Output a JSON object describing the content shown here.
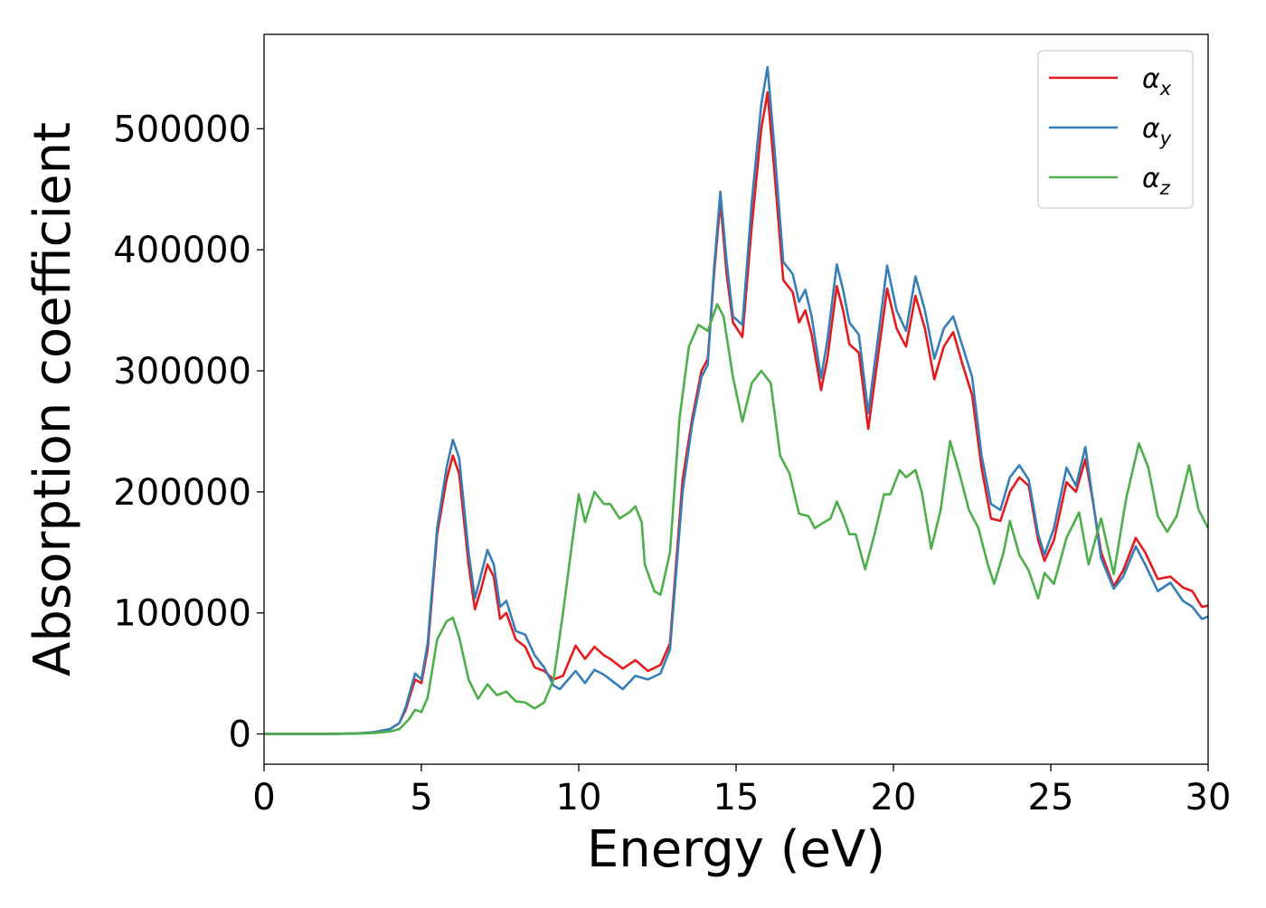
{
  "chart_data": {
    "type": "line",
    "title": "",
    "xlabel": "Energy (eV)",
    "ylabel": "Absorption coefficient",
    "xlim": [
      0,
      30
    ],
    "ylim": [
      -25000,
      578000
    ],
    "x_ticks": [
      0,
      5,
      10,
      15,
      20,
      25,
      30
    ],
    "y_ticks": [
      0,
      100000,
      200000,
      300000,
      400000,
      500000
    ],
    "grid": false,
    "legend_position": "top-right",
    "series": [
      {
        "name": "α",
        "subscript": "x",
        "color": "#e41a1c",
        "points": [
          [
            0,
            0
          ],
          [
            2,
            0
          ],
          [
            3,
            500
          ],
          [
            3.5,
            1500
          ],
          [
            4,
            4000
          ],
          [
            4.3,
            9000
          ],
          [
            4.5,
            20000
          ],
          [
            4.8,
            45000
          ],
          [
            5.0,
            42000
          ],
          [
            5.2,
            70000
          ],
          [
            5.5,
            165000
          ],
          [
            5.8,
            210000
          ],
          [
            6.0,
            230000
          ],
          [
            6.2,
            215000
          ],
          [
            6.5,
            140000
          ],
          [
            6.7,
            103000
          ],
          [
            6.9,
            120000
          ],
          [
            7.1,
            140000
          ],
          [
            7.3,
            130000
          ],
          [
            7.5,
            95000
          ],
          [
            7.7,
            100000
          ],
          [
            8.0,
            78000
          ],
          [
            8.3,
            72000
          ],
          [
            8.6,
            55000
          ],
          [
            8.9,
            52000
          ],
          [
            9.2,
            45000
          ],
          [
            9.5,
            48000
          ],
          [
            9.9,
            73000
          ],
          [
            10.2,
            62000
          ],
          [
            10.5,
            72000
          ],
          [
            10.8,
            65000
          ],
          [
            11.0,
            62000
          ],
          [
            11.4,
            54000
          ],
          [
            11.8,
            61000
          ],
          [
            12.2,
            52000
          ],
          [
            12.6,
            57000
          ],
          [
            12.9,
            75000
          ],
          [
            13.3,
            210000
          ],
          [
            13.6,
            260000
          ],
          [
            13.9,
            300000
          ],
          [
            14.1,
            310000
          ],
          [
            14.3,
            380000
          ],
          [
            14.5,
            440000
          ],
          [
            14.7,
            380000
          ],
          [
            14.9,
            340000
          ],
          [
            15.2,
            328000
          ],
          [
            15.5,
            420000
          ],
          [
            15.8,
            500000
          ],
          [
            16.0,
            530000
          ],
          [
            16.2,
            470000
          ],
          [
            16.5,
            375000
          ],
          [
            16.8,
            365000
          ],
          [
            17.0,
            340000
          ],
          [
            17.2,
            350000
          ],
          [
            17.4,
            330000
          ],
          [
            17.7,
            284000
          ],
          [
            17.9,
            310000
          ],
          [
            18.2,
            370000
          ],
          [
            18.4,
            350000
          ],
          [
            18.6,
            322000
          ],
          [
            18.9,
            315000
          ],
          [
            19.2,
            252000
          ],
          [
            19.5,
            310000
          ],
          [
            19.8,
            368000
          ],
          [
            20.1,
            335000
          ],
          [
            20.4,
            320000
          ],
          [
            20.7,
            362000
          ],
          [
            21.0,
            335000
          ],
          [
            21.3,
            293000
          ],
          [
            21.6,
            320000
          ],
          [
            21.9,
            332000
          ],
          [
            22.2,
            305000
          ],
          [
            22.5,
            280000
          ],
          [
            22.8,
            220000
          ],
          [
            23.1,
            178000
          ],
          [
            23.4,
            176000
          ],
          [
            23.7,
            200000
          ],
          [
            24.0,
            212000
          ],
          [
            24.3,
            205000
          ],
          [
            24.6,
            160000
          ],
          [
            24.8,
            143000
          ],
          [
            25.1,
            160000
          ],
          [
            25.5,
            208000
          ],
          [
            25.8,
            200000
          ],
          [
            26.1,
            227000
          ],
          [
            26.3,
            198000
          ],
          [
            26.6,
            150000
          ],
          [
            27.0,
            122000
          ],
          [
            27.3,
            135000
          ],
          [
            27.7,
            162000
          ],
          [
            28.0,
            150000
          ],
          [
            28.4,
            128000
          ],
          [
            28.8,
            130000
          ],
          [
            29.2,
            121000
          ],
          [
            29.5,
            118000
          ],
          [
            29.8,
            105000
          ],
          [
            30,
            106000
          ]
        ]
      },
      {
        "name": "α",
        "subscript": "y",
        "color": "#377eb8",
        "points": [
          [
            0,
            0
          ],
          [
            2,
            0
          ],
          [
            3,
            500
          ],
          [
            3.5,
            1500
          ],
          [
            4,
            4000
          ],
          [
            4.3,
            9000
          ],
          [
            4.5,
            22000
          ],
          [
            4.8,
            50000
          ],
          [
            5.0,
            45000
          ],
          [
            5.2,
            75000
          ],
          [
            5.5,
            170000
          ],
          [
            5.8,
            220000
          ],
          [
            6.0,
            243000
          ],
          [
            6.2,
            228000
          ],
          [
            6.5,
            150000
          ],
          [
            6.7,
            112000
          ],
          [
            6.9,
            132000
          ],
          [
            7.1,
            152000
          ],
          [
            7.3,
            140000
          ],
          [
            7.5,
            105000
          ],
          [
            7.7,
            110000
          ],
          [
            8.0,
            85000
          ],
          [
            8.3,
            82000
          ],
          [
            8.6,
            65000
          ],
          [
            8.9,
            55000
          ],
          [
            9.2,
            40000
          ],
          [
            9.4,
            37000
          ],
          [
            9.9,
            52000
          ],
          [
            10.2,
            42000
          ],
          [
            10.5,
            53000
          ],
          [
            10.8,
            49000
          ],
          [
            11.0,
            45000
          ],
          [
            11.4,
            37000
          ],
          [
            11.8,
            48000
          ],
          [
            12.2,
            45000
          ],
          [
            12.6,
            50000
          ],
          [
            12.9,
            70000
          ],
          [
            13.3,
            200000
          ],
          [
            13.6,
            255000
          ],
          [
            13.9,
            295000
          ],
          [
            14.1,
            305000
          ],
          [
            14.3,
            385000
          ],
          [
            14.5,
            448000
          ],
          [
            14.7,
            390000
          ],
          [
            14.9,
            345000
          ],
          [
            15.2,
            338000
          ],
          [
            15.5,
            440000
          ],
          [
            15.8,
            520000
          ],
          [
            16.0,
            551000
          ],
          [
            16.2,
            490000
          ],
          [
            16.5,
            390000
          ],
          [
            16.8,
            380000
          ],
          [
            17.0,
            357000
          ],
          [
            17.2,
            367000
          ],
          [
            17.4,
            345000
          ],
          [
            17.7,
            294000
          ],
          [
            17.9,
            325000
          ],
          [
            18.2,
            388000
          ],
          [
            18.4,
            367000
          ],
          [
            18.6,
            340000
          ],
          [
            18.9,
            330000
          ],
          [
            19.2,
            265000
          ],
          [
            19.5,
            325000
          ],
          [
            19.8,
            387000
          ],
          [
            20.1,
            350000
          ],
          [
            20.4,
            333000
          ],
          [
            20.7,
            378000
          ],
          [
            21.0,
            350000
          ],
          [
            21.3,
            310000
          ],
          [
            21.6,
            335000
          ],
          [
            21.9,
            345000
          ],
          [
            22.2,
            320000
          ],
          [
            22.5,
            295000
          ],
          [
            22.8,
            230000
          ],
          [
            23.1,
            190000
          ],
          [
            23.4,
            185000
          ],
          [
            23.7,
            212000
          ],
          [
            24.0,
            222000
          ],
          [
            24.3,
            210000
          ],
          [
            24.6,
            165000
          ],
          [
            24.8,
            148000
          ],
          [
            25.1,
            170000
          ],
          [
            25.5,
            220000
          ],
          [
            25.8,
            205000
          ],
          [
            26.1,
            237000
          ],
          [
            26.3,
            200000
          ],
          [
            26.6,
            145000
          ],
          [
            27.0,
            120000
          ],
          [
            27.3,
            130000
          ],
          [
            27.7,
            155000
          ],
          [
            28.0,
            140000
          ],
          [
            28.4,
            118000
          ],
          [
            28.8,
            125000
          ],
          [
            29.2,
            110000
          ],
          [
            29.5,
            105000
          ],
          [
            29.8,
            95000
          ],
          [
            30,
            97000
          ]
        ]
      },
      {
        "name": "α",
        "subscript": "z",
        "color": "#4daf4a",
        "points": [
          [
            0,
            0
          ],
          [
            2,
            0
          ],
          [
            3,
            300
          ],
          [
            3.5,
            800
          ],
          [
            4,
            2000
          ],
          [
            4.3,
            4000
          ],
          [
            4.6,
            12000
          ],
          [
            4.8,
            20000
          ],
          [
            5.0,
            18000
          ],
          [
            5.2,
            30000
          ],
          [
            5.5,
            78000
          ],
          [
            5.8,
            93000
          ],
          [
            6.0,
            96000
          ],
          [
            6.2,
            80000
          ],
          [
            6.5,
            45000
          ],
          [
            6.8,
            29000
          ],
          [
            7.1,
            41000
          ],
          [
            7.4,
            32000
          ],
          [
            7.7,
            35000
          ],
          [
            8.0,
            27000
          ],
          [
            8.3,
            26000
          ],
          [
            8.6,
            21000
          ],
          [
            8.9,
            26000
          ],
          [
            9.2,
            45000
          ],
          [
            9.5,
            100000
          ],
          [
            9.8,
            160000
          ],
          [
            10.0,
            198000
          ],
          [
            10.2,
            175000
          ],
          [
            10.5,
            200000
          ],
          [
            10.8,
            190000
          ],
          [
            11.0,
            190000
          ],
          [
            11.3,
            178000
          ],
          [
            11.6,
            183000
          ],
          [
            11.8,
            188000
          ],
          [
            12.0,
            175000
          ],
          [
            12.1,
            140000
          ],
          [
            12.4,
            118000
          ],
          [
            12.6,
            115000
          ],
          [
            12.9,
            150000
          ],
          [
            13.2,
            260000
          ],
          [
            13.5,
            320000
          ],
          [
            13.8,
            338000
          ],
          [
            14.1,
            333000
          ],
          [
            14.4,
            355000
          ],
          [
            14.6,
            345000
          ],
          [
            14.9,
            295000
          ],
          [
            15.2,
            258000
          ],
          [
            15.5,
            290000
          ],
          [
            15.8,
            300000
          ],
          [
            16.1,
            290000
          ],
          [
            16.4,
            230000
          ],
          [
            16.7,
            215000
          ],
          [
            17.0,
            182000
          ],
          [
            17.3,
            180000
          ],
          [
            17.5,
            170000
          ],
          [
            17.8,
            175000
          ],
          [
            18.0,
            178000
          ],
          [
            18.2,
            192000
          ],
          [
            18.4,
            180000
          ],
          [
            18.6,
            165000
          ],
          [
            18.8,
            165000
          ],
          [
            19.1,
            136000
          ],
          [
            19.4,
            165000
          ],
          [
            19.7,
            198000
          ],
          [
            19.9,
            198000
          ],
          [
            20.2,
            218000
          ],
          [
            20.4,
            212000
          ],
          [
            20.7,
            218000
          ],
          [
            20.9,
            200000
          ],
          [
            21.2,
            153000
          ],
          [
            21.5,
            185000
          ],
          [
            21.8,
            242000
          ],
          [
            22.1,
            215000
          ],
          [
            22.4,
            185000
          ],
          [
            22.7,
            170000
          ],
          [
            23.0,
            140000
          ],
          [
            23.2,
            124000
          ],
          [
            23.5,
            150000
          ],
          [
            23.7,
            176000
          ],
          [
            24.0,
            148000
          ],
          [
            24.3,
            135000
          ],
          [
            24.6,
            112000
          ],
          [
            24.8,
            133000
          ],
          [
            25.1,
            124000
          ],
          [
            25.5,
            162000
          ],
          [
            25.9,
            183000
          ],
          [
            26.2,
            140000
          ],
          [
            26.6,
            178000
          ],
          [
            27.0,
            132000
          ],
          [
            27.4,
            195000
          ],
          [
            27.8,
            240000
          ],
          [
            28.1,
            220000
          ],
          [
            28.4,
            180000
          ],
          [
            28.7,
            167000
          ],
          [
            29.0,
            180000
          ],
          [
            29.4,
            222000
          ],
          [
            29.7,
            185000
          ],
          [
            30,
            170000
          ]
        ]
      }
    ]
  }
}
